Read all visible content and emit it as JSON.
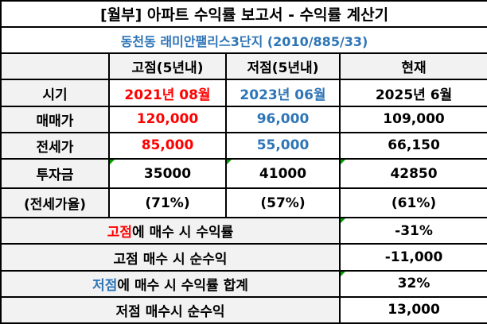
{
  "title": "[월부] 아파트 수익률 보고서 - 수익률 계산기",
  "subtitle": "동천동 래미안팰리스3단지 (2010/885/33)",
  "columns": {
    "peak": "고점(5년내)",
    "low": "저점(5년내)",
    "current": "현재"
  },
  "rows": {
    "period": {
      "label": "시기",
      "peak": "2021년 08월",
      "low": "2023년 06월",
      "current": "2025년 6월"
    },
    "sale": {
      "label": "매매가",
      "peak": "120,000",
      "low": "96,000",
      "current": "109,000"
    },
    "jeonse": {
      "label": "전세가",
      "peak": "85,000",
      "low": "55,000",
      "current": "66,150"
    },
    "investment": {
      "label_line1": "투자금",
      "label_line2": "(전세가율)",
      "peak_amount": "35000",
      "peak_ratio": "(71%)",
      "low_amount": "41000",
      "low_ratio": "(57%)",
      "current_amount": "42850",
      "current_ratio": "(61%)"
    }
  },
  "summary": {
    "peak_return": {
      "label_highlight": "고점",
      "label_rest": "에 매수 시 수익률",
      "value": "-31%"
    },
    "peak_profit": {
      "label": "고점 매수 시 순수익",
      "value": "-11,000"
    },
    "low_return": {
      "label_highlight": "저점",
      "label_rest": "에 매수 시 수익률 합계",
      "value": "32%"
    },
    "low_profit": {
      "label": "저점 매수시 순수익",
      "value": "13,000"
    }
  },
  "colors": {
    "red": "#ff0000",
    "blue": "#2e75b6",
    "marker": "#00a000"
  }
}
